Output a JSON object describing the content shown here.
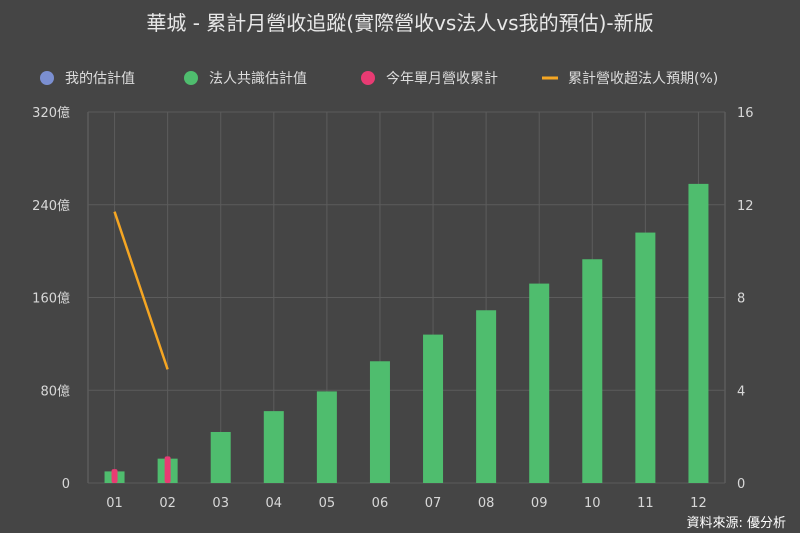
{
  "chart_data": {
    "type": "bar",
    "title": "華城 - 累計月營收追蹤(實際營收vs法人vs我的預估)-新版",
    "categories": [
      "01",
      "02",
      "03",
      "04",
      "05",
      "06",
      "07",
      "08",
      "09",
      "10",
      "11",
      "12"
    ],
    "series": [
      {
        "name": "我的估計值",
        "type": "bar",
        "color": "#7b8fd1",
        "values": [
          null,
          null,
          null,
          null,
          null,
          null,
          null,
          null,
          null,
          null,
          null,
          null
        ]
      },
      {
        "name": "法人共識估計值",
        "type": "bar",
        "color": "#4fbd6e",
        "values": [
          10,
          21,
          44,
          62,
          79,
          105,
          128,
          149,
          172,
          193,
          216,
          258
        ]
      },
      {
        "name": "今年單月營收累計",
        "type": "bar",
        "color": "#e83b73",
        "values": [
          12,
          23,
          null,
          null,
          null,
          null,
          null,
          null,
          null,
          null,
          null,
          null
        ]
      },
      {
        "name": "累計營收超法人預期(%)",
        "type": "line",
        "axis": "right",
        "color": "#f5a623",
        "values": [
          11.7,
          4.9,
          null,
          null,
          null,
          null,
          null,
          null,
          null,
          null,
          null,
          null
        ]
      }
    ],
    "y_left": {
      "ticks": [
        "0",
        "80億",
        "160億",
        "240億",
        "320億"
      ],
      "ylim": [
        0,
        320
      ]
    },
    "y_right": {
      "ticks": [
        "0",
        "4",
        "8",
        "12",
        "16"
      ],
      "ylim": [
        0,
        16
      ]
    },
    "grid": "vertical",
    "legend_position": "top",
    "source": "資料來源: 優分析"
  }
}
